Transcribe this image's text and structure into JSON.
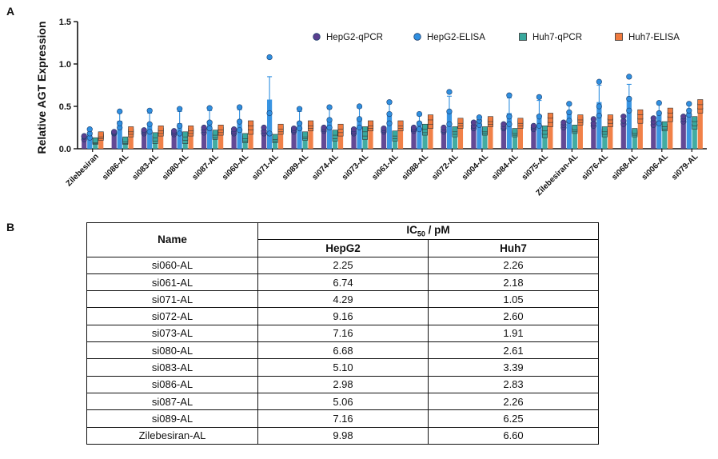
{
  "panels": {
    "a": "A",
    "b": "B"
  },
  "chart_data": {
    "type": "bar",
    "ylabel": "Relative AGT Expression",
    "ylim": [
      0,
      1.5
    ],
    "yticks": [
      "0.0",
      "0.5",
      "1.0",
      "1.5"
    ],
    "categories": [
      "Zilebesiran",
      "si086-AL",
      "si083-AL",
      "si080-AL",
      "si087-AL",
      "si060-AL",
      "si071-AL",
      "si089-AL",
      "si074-AL",
      "si073-AL",
      "si061-AL",
      "si088-AL",
      "si072-AL",
      "si004-AL",
      "si084-AL",
      "si075-AL",
      "Zilebesiran-AL",
      "si076-AL",
      "si068-AL",
      "si006-AL",
      "si079-AL"
    ],
    "legend_position": "top-right",
    "series": [
      {
        "name": "HepG2-qPCR",
        "color": "#5b3f8f",
        "values": [
          0.13,
          0.19,
          0.2,
          0.19,
          0.22,
          0.2,
          0.21,
          0.22,
          0.23,
          0.2,
          0.22,
          0.23,
          0.22,
          0.27,
          0.26,
          0.25,
          0.28,
          0.3,
          0.33,
          0.32,
          0.35
        ],
        "err": [
          0.03,
          0.02,
          0.02,
          0.02,
          0.04,
          0.03,
          0.04,
          0.03,
          0.03,
          0.03,
          0.03,
          0.03,
          0.03,
          0.04,
          0.03,
          0.03,
          0.04,
          0.04,
          0.05,
          0.05,
          0.04
        ],
        "points": [
          [
            0.11,
            0.14,
            0.15
          ],
          [
            0.18,
            0.19,
            0.2
          ],
          [
            0.18,
            0.2,
            0.22
          ],
          [
            0.17,
            0.19,
            0.21
          ],
          [
            0.19,
            0.22,
            0.25
          ],
          [
            0.18,
            0.2,
            0.23
          ],
          [
            0.18,
            0.21,
            0.25
          ],
          [
            0.2,
            0.22,
            0.24
          ],
          [
            0.21,
            0.23,
            0.25
          ],
          [
            0.18,
            0.2,
            0.23
          ],
          [
            0.2,
            0.22,
            0.24
          ],
          [
            0.21,
            0.23,
            0.25
          ],
          [
            0.2,
            0.22,
            0.25
          ],
          [
            0.24,
            0.27,
            0.31
          ],
          [
            0.24,
            0.26,
            0.29
          ],
          [
            0.23,
            0.25,
            0.27
          ],
          [
            0.25,
            0.28,
            0.31
          ],
          [
            0.27,
            0.3,
            0.35
          ],
          [
            0.29,
            0.33,
            0.38
          ],
          [
            0.28,
            0.32,
            0.36
          ],
          [
            0.32,
            0.35,
            0.38
          ]
        ]
      },
      {
        "name": "HepG2-ELISA",
        "color": "#2f8fe0",
        "values": [
          0.17,
          0.33,
          0.3,
          0.3,
          0.33,
          0.33,
          0.58,
          0.32,
          0.35,
          0.35,
          0.4,
          0.3,
          0.45,
          0.32,
          0.42,
          0.4,
          0.42,
          0.55,
          0.6,
          0.4,
          0.45
        ],
        "err": [
          0.05,
          0.1,
          0.12,
          0.14,
          0.12,
          0.13,
          0.27,
          0.12,
          0.12,
          0.13,
          0.13,
          0.09,
          0.17,
          0.05,
          0.18,
          0.17,
          0.1,
          0.2,
          0.16,
          0.12,
          0.08
        ],
        "points": [
          [
            0.13,
            0.18,
            0.23
          ],
          [
            0.25,
            0.3,
            0.44
          ],
          [
            0.2,
            0.29,
            0.45
          ],
          [
            0.18,
            0.27,
            0.47
          ],
          [
            0.24,
            0.31,
            0.48
          ],
          [
            0.22,
            0.32,
            0.49
          ],
          [
            0.18,
            0.42,
            1.08
          ],
          [
            0.24,
            0.3,
            0.47
          ],
          [
            0.25,
            0.34,
            0.49
          ],
          [
            0.25,
            0.35,
            0.5
          ],
          [
            0.3,
            0.41,
            0.55
          ],
          [
            0.23,
            0.3,
            0.41
          ],
          [
            0.29,
            0.44,
            0.67
          ],
          [
            0.28,
            0.33,
            0.37
          ],
          [
            0.29,
            0.38,
            0.63
          ],
          [
            0.27,
            0.38,
            0.61
          ],
          [
            0.33,
            0.43,
            0.53
          ],
          [
            0.39,
            0.5,
            0.79
          ],
          [
            0.45,
            0.59,
            0.85
          ],
          [
            0.3,
            0.42,
            0.54
          ],
          [
            0.4,
            0.45,
            0.53
          ]
        ]
      },
      {
        "name": "Huh7-qPCR",
        "color": "#38a89d",
        "values": [
          0.09,
          0.09,
          0.12,
          0.13,
          0.16,
          0.12,
          0.12,
          0.15,
          0.15,
          0.18,
          0.15,
          0.22,
          0.2,
          0.21,
          0.19,
          0.2,
          0.23,
          0.2,
          0.19,
          0.26,
          0.3
        ],
        "err": [
          0.01,
          0.02,
          0.04,
          0.05,
          0.03,
          0.03,
          0.02,
          0.02,
          0.04,
          0.05,
          0.03,
          0.04,
          0.03,
          0.02,
          0.02,
          0.04,
          0.02,
          0.03,
          0.02,
          0.03,
          0.05
        ],
        "points": [
          [
            0.08,
            0.09,
            0.1
          ],
          [
            0.08,
            0.09,
            0.11
          ],
          [
            0.09,
            0.12,
            0.16
          ],
          [
            0.09,
            0.13,
            0.17
          ],
          [
            0.14,
            0.16,
            0.19
          ],
          [
            0.1,
            0.12,
            0.15
          ],
          [
            0.1,
            0.12,
            0.14
          ],
          [
            0.13,
            0.15,
            0.17
          ],
          [
            0.12,
            0.15,
            0.19
          ],
          [
            0.14,
            0.18,
            0.23
          ],
          [
            0.12,
            0.15,
            0.18
          ],
          [
            0.19,
            0.22,
            0.26
          ],
          [
            0.17,
            0.2,
            0.23
          ],
          [
            0.19,
            0.21,
            0.23
          ],
          [
            0.17,
            0.19,
            0.21
          ],
          [
            0.16,
            0.2,
            0.24
          ],
          [
            0.21,
            0.23,
            0.25
          ],
          [
            0.17,
            0.2,
            0.23
          ],
          [
            0.17,
            0.19,
            0.21
          ],
          [
            0.24,
            0.26,
            0.29
          ],
          [
            0.26,
            0.3,
            0.35
          ]
        ]
      },
      {
        "name": "Huh7-ELISA",
        "color": "#f07a3e",
        "values": [
          0.15,
          0.2,
          0.21,
          0.21,
          0.22,
          0.25,
          0.23,
          0.27,
          0.22,
          0.27,
          0.27,
          0.32,
          0.3,
          0.32,
          0.3,
          0.34,
          0.34,
          0.33,
          0.38,
          0.4,
          0.5
        ],
        "err": [
          0.02,
          0.03,
          0.03,
          0.03,
          0.03,
          0.05,
          0.03,
          0.03,
          0.04,
          0.03,
          0.03,
          0.05,
          0.03,
          0.03,
          0.03,
          0.05,
          0.03,
          0.04,
          0.05,
          0.05,
          0.05
        ],
        "points": [
          [
            0.13,
            0.15,
            0.17
          ],
          [
            0.17,
            0.2,
            0.23
          ],
          [
            0.18,
            0.21,
            0.24
          ],
          [
            0.18,
            0.21,
            0.24
          ],
          [
            0.19,
            0.22,
            0.25
          ],
          [
            0.2,
            0.25,
            0.3
          ],
          [
            0.2,
            0.23,
            0.26
          ],
          [
            0.24,
            0.27,
            0.3
          ],
          [
            0.18,
            0.22,
            0.26
          ],
          [
            0.24,
            0.27,
            0.3
          ],
          [
            0.24,
            0.27,
            0.3
          ],
          [
            0.27,
            0.32,
            0.37
          ],
          [
            0.27,
            0.3,
            0.33
          ],
          [
            0.29,
            0.32,
            0.35
          ],
          [
            0.27,
            0.3,
            0.33
          ],
          [
            0.29,
            0.34,
            0.39
          ],
          [
            0.31,
            0.34,
            0.37
          ],
          [
            0.29,
            0.33,
            0.37
          ],
          [
            0.33,
            0.38,
            0.43
          ],
          [
            0.35,
            0.4,
            0.45
          ],
          [
            0.45,
            0.5,
            0.55
          ]
        ]
      }
    ]
  },
  "table": {
    "col_name": "Name",
    "group_header_main": "IC",
    "group_header_sub": "50",
    "group_header_unit": " / pM",
    "col_hepg2": "HepG2",
    "col_huh7": "Huh7",
    "rows": [
      [
        "si060-AL",
        "2.25",
        "2.26"
      ],
      [
        "si061-AL",
        "6.74",
        "2.18"
      ],
      [
        "si071-AL",
        "4.29",
        "1.05"
      ],
      [
        "si072-AL",
        "9.16",
        "2.60"
      ],
      [
        "si073-AL",
        "7.16",
        "1.91"
      ],
      [
        "si080-AL",
        "6.68",
        "2.61"
      ],
      [
        "si083-AL",
        "5.10",
        "3.39"
      ],
      [
        "si086-AL",
        "2.98",
        "2.83"
      ],
      [
        "si087-AL",
        "5.06",
        "2.26"
      ],
      [
        "si089-AL",
        "7.16",
        "6.25"
      ],
      [
        "Zilebesiran-AL",
        "9.98",
        "6.60"
      ]
    ]
  }
}
